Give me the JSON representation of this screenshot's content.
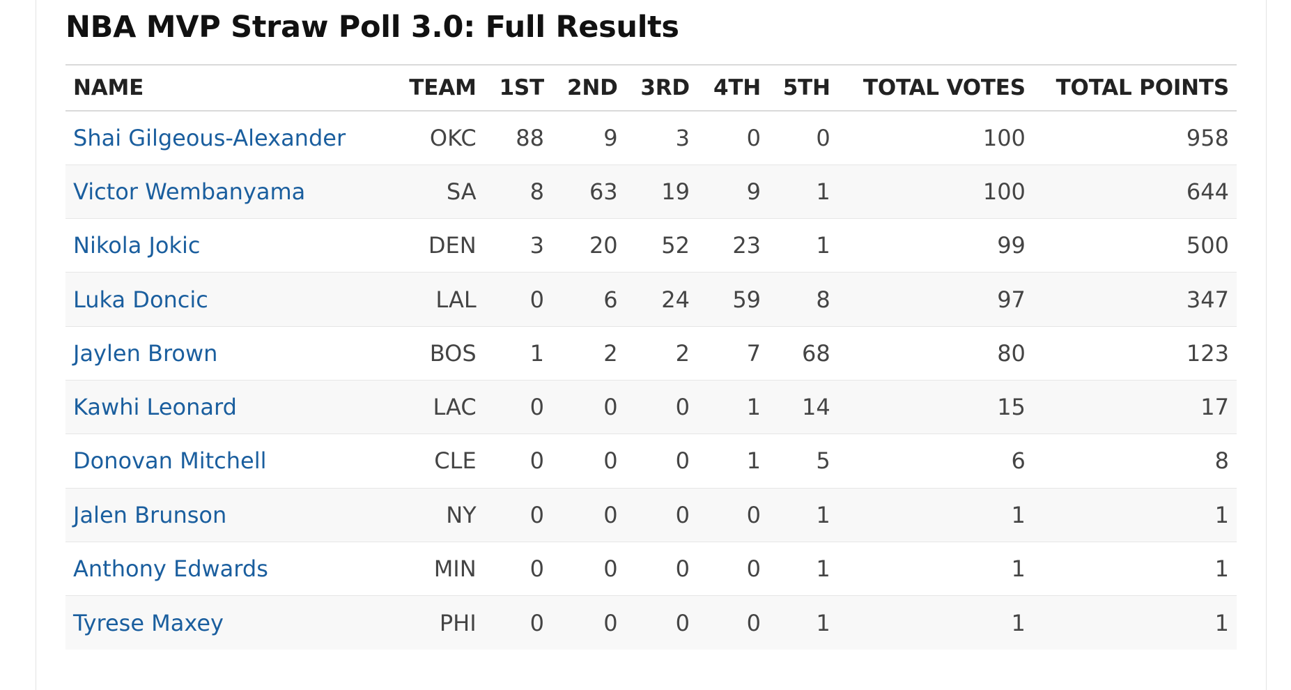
{
  "page": {
    "title": "NBA MVP Straw Poll 3.0: Full Results"
  },
  "table": {
    "headers": {
      "name": "NAME",
      "team": "TEAM",
      "first": "1ST",
      "second": "2ND",
      "third": "3RD",
      "fourth": "4TH",
      "fifth": "5TH",
      "total_votes": "TOTAL VOTES",
      "total_points": "TOTAL POINTS"
    },
    "rows": [
      {
        "name": "Shai Gilgeous-Alexander",
        "team": "OKC",
        "first": "88",
        "second": "9",
        "third": "3",
        "fourth": "0",
        "fifth": "0",
        "total_votes": "100",
        "total_points": "958"
      },
      {
        "name": "Victor Wembanyama",
        "team": "SA",
        "first": "8",
        "second": "63",
        "third": "19",
        "fourth": "9",
        "fifth": "1",
        "total_votes": "100",
        "total_points": "644"
      },
      {
        "name": "Nikola Jokic",
        "team": "DEN",
        "first": "3",
        "second": "20",
        "third": "52",
        "fourth": "23",
        "fifth": "1",
        "total_votes": "99",
        "total_points": "500"
      },
      {
        "name": "Luka Doncic",
        "team": "LAL",
        "first": "0",
        "second": "6",
        "third": "24",
        "fourth": "59",
        "fifth": "8",
        "total_votes": "97",
        "total_points": "347"
      },
      {
        "name": "Jaylen Brown",
        "team": "BOS",
        "first": "1",
        "second": "2",
        "third": "2",
        "fourth": "7",
        "fifth": "68",
        "total_votes": "80",
        "total_points": "123"
      },
      {
        "name": "Kawhi Leonard",
        "team": "LAC",
        "first": "0",
        "second": "0",
        "third": "0",
        "fourth": "1",
        "fifth": "14",
        "total_votes": "15",
        "total_points": "17"
      },
      {
        "name": "Donovan Mitchell",
        "team": "CLE",
        "first": "0",
        "second": "0",
        "third": "0",
        "fourth": "1",
        "fifth": "5",
        "total_votes": "6",
        "total_points": "8"
      },
      {
        "name": "Jalen Brunson",
        "team": "NY",
        "first": "0",
        "second": "0",
        "third": "0",
        "fourth": "0",
        "fifth": "1",
        "total_votes": "1",
        "total_points": "1"
      },
      {
        "name": "Anthony Edwards",
        "team": "MIN",
        "first": "0",
        "second": "0",
        "third": "0",
        "fourth": "0",
        "fifth": "1",
        "total_votes": "1",
        "total_points": "1"
      },
      {
        "name": "Tyrese Maxey",
        "team": "PHI",
        "first": "0",
        "second": "0",
        "third": "0",
        "fourth": "0",
        "fifth": "1",
        "total_votes": "1",
        "total_points": "1"
      }
    ]
  },
  "colors": {
    "link": "#1a5e9e",
    "stripe": "#f8f8f8",
    "text": "#444444",
    "header_text": "#222222"
  }
}
